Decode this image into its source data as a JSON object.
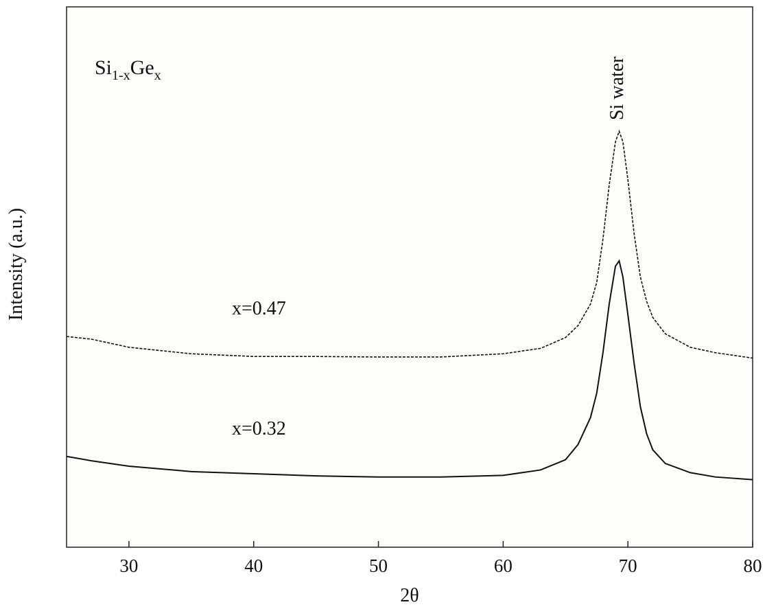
{
  "chart_data": {
    "type": "line",
    "xlabel": "2θ",
    "ylabel": "Intensity (a.u.)",
    "x": [
      25,
      27,
      30,
      35,
      40,
      45,
      50,
      55,
      60,
      63,
      65,
      66,
      67,
      67.5,
      68,
      68.5,
      69,
      69.3,
      69.6,
      70,
      70.5,
      71,
      71.5,
      72,
      73,
      75,
      77,
      80
    ],
    "series": [
      {
        "name": "x=0.47",
        "color": "#111111",
        "line_style": "dashed",
        "values": [
          39,
          38.5,
          37,
          35.8,
          35.3,
          35.3,
          35.2,
          35.2,
          35.8,
          36.8,
          38.8,
          41,
          45,
          49,
          57,
          67,
          75,
          77,
          75,
          68,
          58,
          50,
          45.5,
          42.5,
          39.5,
          37,
          36,
          35
        ]
      },
      {
        "name": "x=0.32",
        "color": "#111111",
        "line_style": "solid",
        "values": [
          16.8,
          16,
          15,
          14,
          13.6,
          13.2,
          13,
          13,
          13.3,
          14.3,
          16.2,
          19,
          24,
          28.5,
          36,
          45,
          52,
          53,
          50,
          43,
          34,
          26,
          21,
          18,
          15.5,
          13.8,
          13,
          12.5
        ]
      }
    ],
    "xlim": [
      25,
      80
    ],
    "xticks": [
      30,
      40,
      50,
      60,
      70,
      80
    ],
    "ylim": [
      0,
      100
    ],
    "peak_label": "Si water",
    "sample_label": {
      "base1": "Si",
      "sub1": "1-x",
      "base2": "Ge",
      "sub2": "x"
    }
  }
}
